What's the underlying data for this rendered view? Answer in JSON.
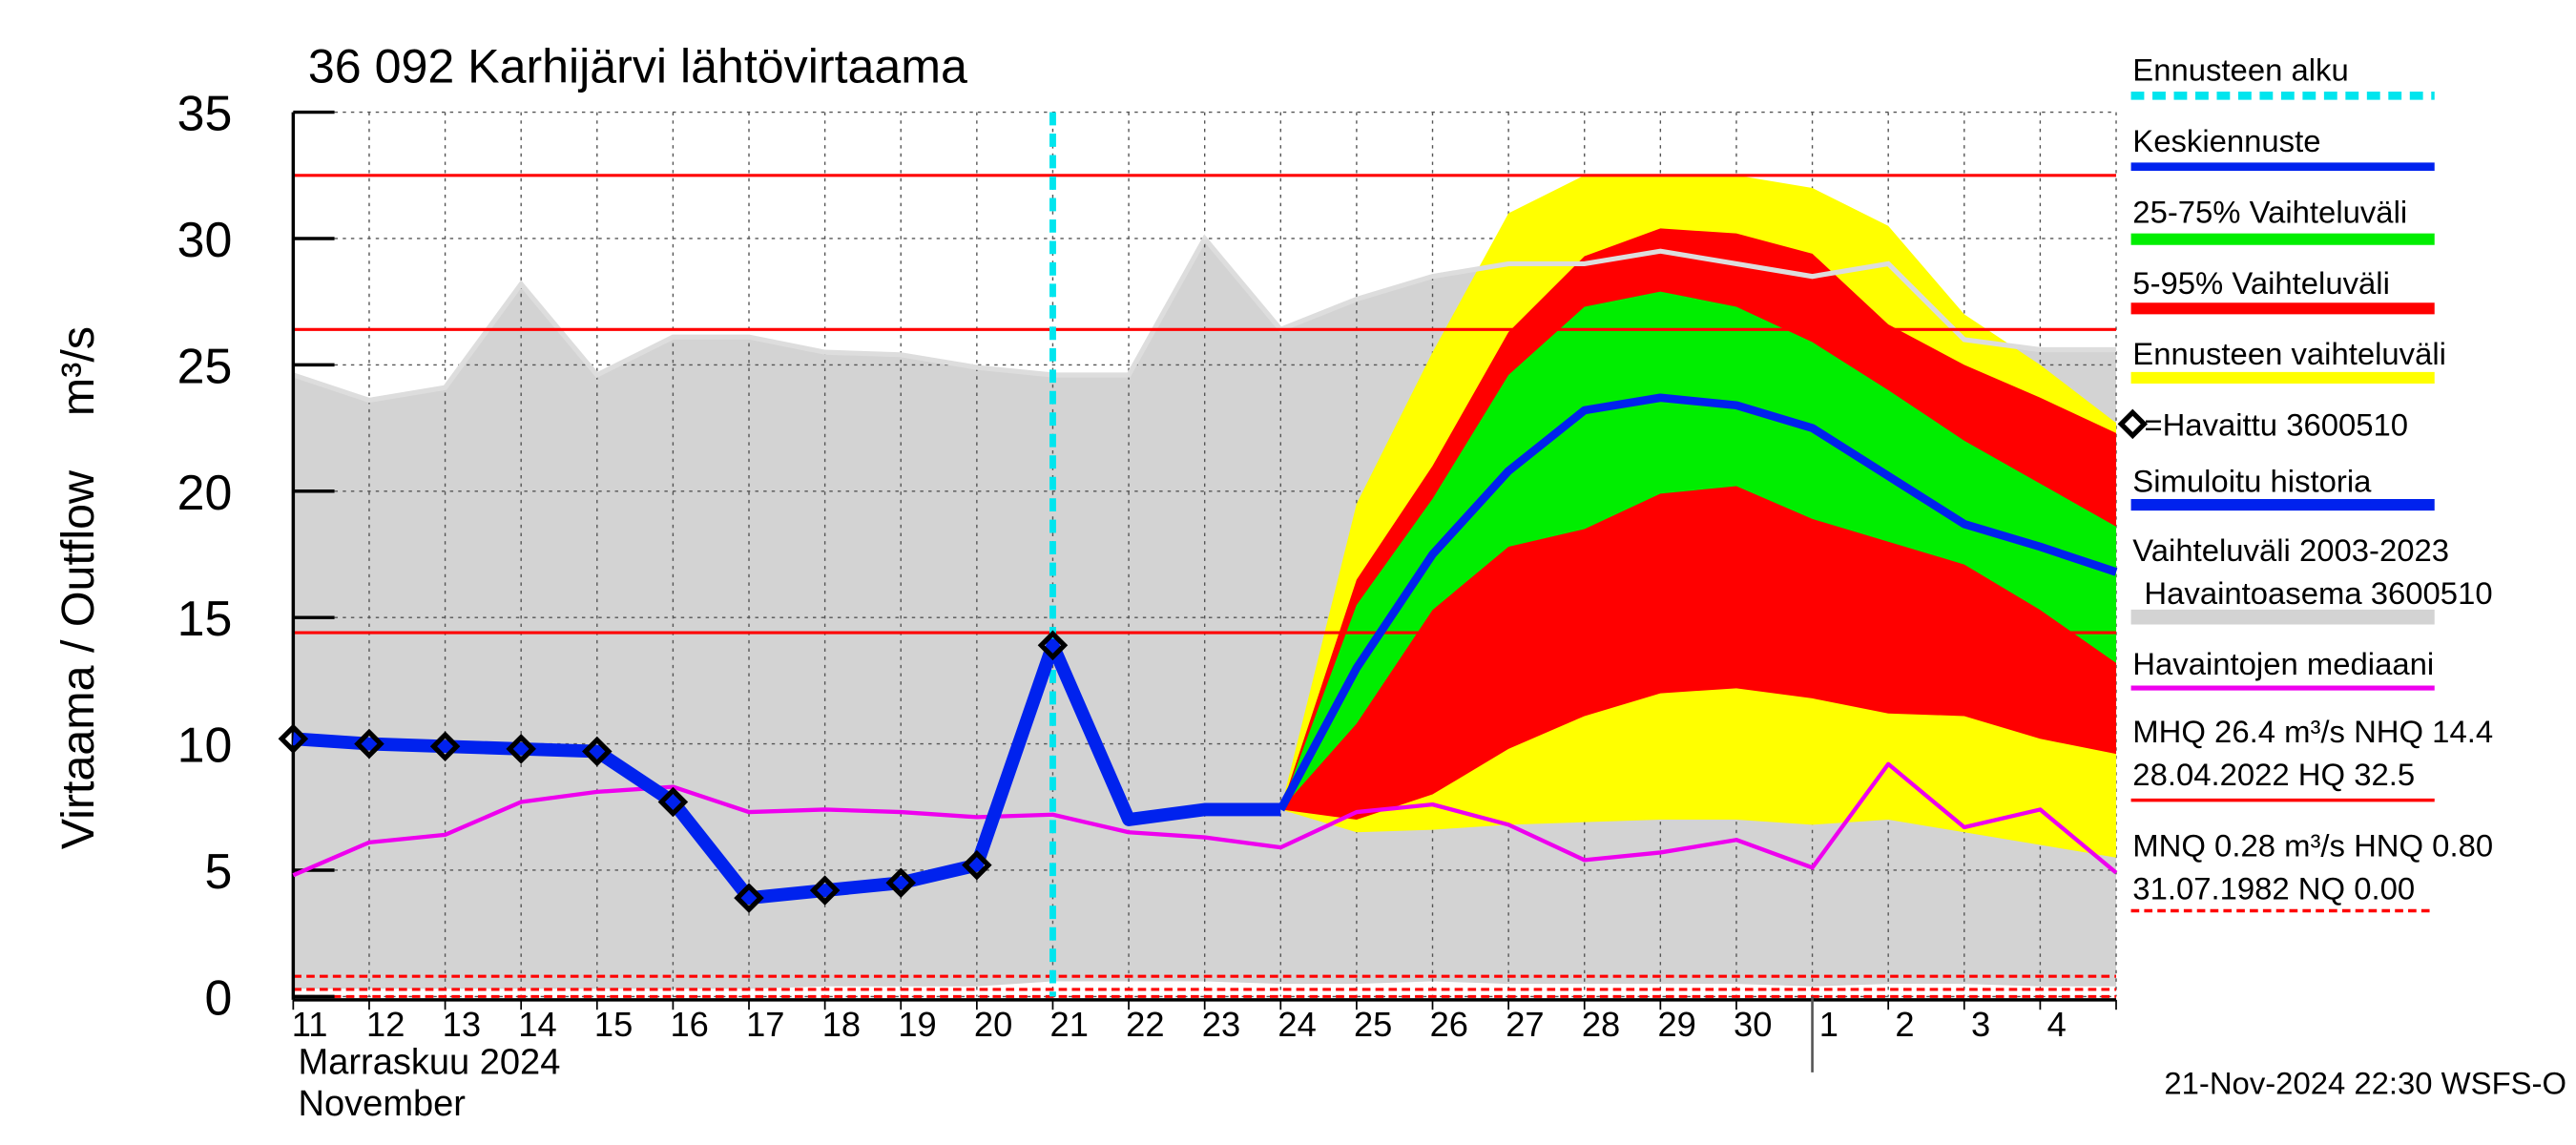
{
  "chart_data": {
    "type": "line",
    "title": "36 092 Karhijärvi lähtövirtaama",
    "y_label": "Virtaama / Outflow",
    "y_unit": "m³/s",
    "x_month_labels": [
      "Marraskuu 2024",
      "November"
    ],
    "footer": "21-Nov-2024 22:30 WSFS-O",
    "categories": [
      "11",
      "12",
      "13",
      "14",
      "15",
      "16",
      "17",
      "18",
      "19",
      "20",
      "21",
      "22",
      "23",
      "24",
      "25",
      "26",
      "27",
      "28",
      "29",
      "30",
      "1",
      "2",
      "3",
      "4",
      null
    ],
    "ylim": [
      0,
      35
    ],
    "yticks": [
      0,
      5,
      10,
      15,
      20,
      25,
      30,
      35
    ],
    "grid": true,
    "forecast_start": "21",
    "forecast_start_label": "Ennusteen alku",
    "forecast_start_color": "#00e5ee",
    "history_band": {
      "name": [
        "Vaihteluväli 2003-2023",
        "Havaintoasema 3600510"
      ],
      "color": "#d3d3d3",
      "low": [
        0.3,
        0.3,
        0.3,
        0.3,
        0.3,
        0.3,
        0.3,
        0.4,
        0.4,
        0.4,
        0.6,
        0.6,
        0.6,
        0.5,
        0.5,
        0.6,
        0.5,
        0.5,
        0.5,
        0.5,
        0.4,
        0.5,
        0.5,
        0.4,
        0.4
      ],
      "high": [
        24.6,
        23.6,
        24.1,
        28.2,
        24.6,
        26.1,
        26.1,
        25.5,
        25.4,
        24.9,
        24.6,
        24.6,
        30.0,
        26.4,
        27.6,
        28.5,
        29.0,
        29.0,
        29.5,
        29.0,
        28.5,
        29.0,
        26.0,
        25.6,
        25.6
      ]
    },
    "bands": [
      {
        "name": "Ennusteen vaihteluväli",
        "color": "#ffff00",
        "low": [
          null,
          null,
          null,
          null,
          null,
          null,
          null,
          null,
          null,
          null,
          null,
          null,
          null,
          7.4,
          6.5,
          6.6,
          6.8,
          6.9,
          7.0,
          7.0,
          6.8,
          7.0,
          6.5,
          6.0,
          5.5
        ],
        "high": [
          null,
          null,
          null,
          null,
          null,
          null,
          null,
          null,
          null,
          null,
          null,
          null,
          null,
          7.4,
          19.5,
          25.5,
          31.0,
          32.5,
          32.5,
          32.5,
          32.0,
          30.5,
          27.0,
          25.0,
          22.7
        ]
      },
      {
        "name": "5-95% Vaihteluväli",
        "color": "#ff0000",
        "low": [
          null,
          null,
          null,
          null,
          null,
          null,
          null,
          null,
          null,
          null,
          null,
          null,
          null,
          7.4,
          7.0,
          8.0,
          9.8,
          11.1,
          12.0,
          12.2,
          11.8,
          11.2,
          11.1,
          10.2,
          9.6
        ],
        "high": [
          null,
          null,
          null,
          null,
          null,
          null,
          null,
          null,
          null,
          null,
          null,
          null,
          null,
          7.4,
          16.5,
          21.0,
          26.3,
          29.3,
          30.4,
          30.2,
          29.4,
          26.6,
          25.0,
          23.7,
          22.3
        ]
      },
      {
        "name": "25-75% Vaihteluväli",
        "color": "#00ee00",
        "low": [
          null,
          null,
          null,
          null,
          null,
          null,
          null,
          null,
          null,
          null,
          null,
          null,
          null,
          7.4,
          10.8,
          15.3,
          17.8,
          18.5,
          19.9,
          20.2,
          18.9,
          18.0,
          17.1,
          15.3,
          13.2
        ],
        "high": [
          null,
          null,
          null,
          null,
          null,
          null,
          null,
          null,
          null,
          null,
          null,
          null,
          null,
          7.4,
          15.5,
          19.7,
          24.6,
          27.3,
          27.9,
          27.3,
          25.9,
          24.0,
          22.0,
          20.3,
          18.6
        ]
      }
    ],
    "series": [
      {
        "name": "Havaintojen mediaani",
        "color": "#ee00ee",
        "values": [
          4.8,
          6.1,
          6.4,
          7.7,
          8.1,
          8.3,
          7.3,
          7.4,
          7.3,
          7.1,
          7.2,
          6.5,
          6.3,
          5.9,
          7.3,
          7.6,
          6.8,
          5.4,
          5.7,
          6.2,
          5.1,
          9.2,
          6.7,
          7.4,
          4.9
        ]
      },
      {
        "name": "Simuloitu historia",
        "color": "#0022ee",
        "values": [
          10.2,
          10.0,
          9.9,
          9.8,
          9.7,
          7.7,
          3.9,
          4.2,
          4.5,
          5.2,
          13.9,
          7.0,
          7.4,
          7.4,
          null,
          null,
          null,
          null,
          null,
          null,
          null,
          null,
          null,
          null,
          null
        ]
      },
      {
        "name": "Keskiennuste",
        "color": "#0022ee",
        "values": [
          null,
          null,
          null,
          null,
          null,
          null,
          null,
          null,
          null,
          null,
          null,
          null,
          null,
          7.4,
          13.0,
          17.5,
          20.8,
          23.2,
          23.7,
          23.4,
          22.5,
          20.6,
          18.7,
          17.8,
          16.8
        ]
      },
      {
        "name": "=Havaittu 3600510",
        "color": "#000000",
        "marker": "diamond",
        "values": [
          10.2,
          10.0,
          9.9,
          9.8,
          9.7,
          7.7,
          3.9,
          4.2,
          4.5,
          5.2,
          13.9,
          null,
          null,
          null,
          null,
          null,
          null,
          null,
          null,
          null,
          null,
          null,
          null,
          null,
          null
        ]
      }
    ],
    "reference_lines": [
      {
        "label": [
          "MHQ 26.4 m³/s NHQ 14.4",
          "28.04.2022 HQ 32.5"
        ],
        "color": "#ff0000",
        "dashed": false,
        "values": [
          32.5,
          26.4,
          14.4
        ]
      },
      {
        "label": [
          "MNQ 0.28 m³/s HNQ 0.80",
          "31.07.1982 NQ 0.00"
        ],
        "color": "#ff0000",
        "dashed": true,
        "values": [
          0.8,
          0.28,
          0
        ]
      }
    ]
  }
}
